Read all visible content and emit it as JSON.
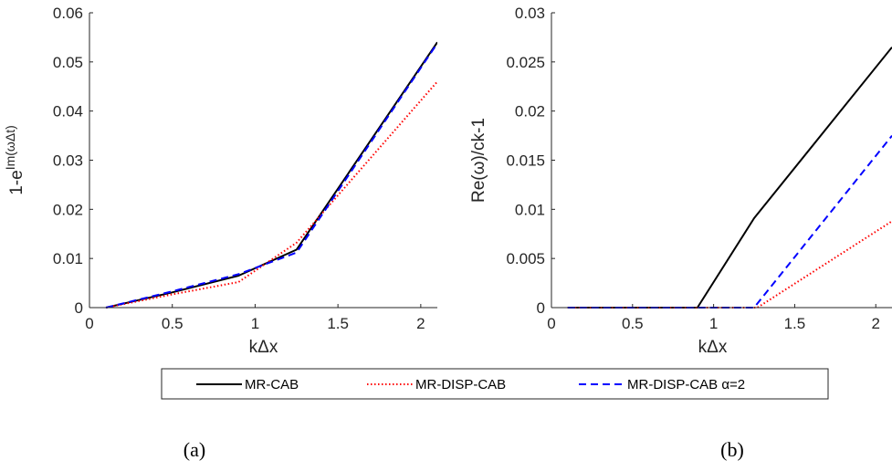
{
  "chart_data": [
    {
      "type": "line",
      "panel_label": "(a)",
      "xlabel": "kΔx",
      "ylabel": "1-e^{Im(ωΔt)}",
      "ylabel_base": "1-e",
      "ylabel_sup": "Im(ωΔt)",
      "xlim": [
        0,
        2.1
      ],
      "ylim": [
        0,
        0.06
      ],
      "xticks": [
        0,
        0.5,
        1,
        1.5,
        2
      ],
      "yticks": [
        0,
        0.01,
        0.02,
        0.03,
        0.04,
        0.05,
        0.06
      ],
      "xtick_labels": [
        "0",
        "0.5",
        "1",
        "1.5",
        "2"
      ],
      "ytick_labels": [
        "0",
        "0.01",
        "0.02",
        "0.03",
        "0.04",
        "0.05",
        "0.06"
      ],
      "series": [
        {
          "name": "MR-CAB",
          "color": "#000000",
          "dash": "solid",
          "x": [
            0.1,
            0.5,
            0.9,
            1.25,
            2.1
          ],
          "y": [
            0,
            0.0031,
            0.0065,
            0.0118,
            0.054
          ]
        },
        {
          "name": "MR-DISP-CAB",
          "color": "#ff0000",
          "dash": "dotted",
          "x": [
            0.1,
            0.5,
            0.9,
            1.25,
            2.1
          ],
          "y": [
            0,
            0.0027,
            0.0052,
            0.0132,
            0.046
          ]
        },
        {
          "name": "MR-DISP-CAB α=2",
          "color": "#0000ff",
          "dash": "dashed",
          "x": [
            0.1,
            0.5,
            0.9,
            1.25,
            2.1
          ],
          "y": [
            0,
            0.0033,
            0.0068,
            0.0112,
            0.0538
          ]
        }
      ]
    },
    {
      "type": "line",
      "panel_label": "(b)",
      "xlabel": "kΔx",
      "ylabel": "Re(ω)/ck-1",
      "xlim": [
        0,
        2.1
      ],
      "ylim": [
        0,
        0.03
      ],
      "xticks": [
        0,
        0.5,
        1,
        1.5,
        2
      ],
      "yticks": [
        0,
        0.005,
        0.01,
        0.015,
        0.02,
        0.025,
        0.03
      ],
      "xtick_labels": [
        "0",
        "0.5",
        "1",
        "1.5",
        "2"
      ],
      "ytick_labels": [
        "0",
        "0.005",
        "0.01",
        "0.015",
        "0.02",
        "0.025",
        "0.03"
      ],
      "series": [
        {
          "name": "MR-CAB",
          "color": "#000000",
          "dash": "solid",
          "x": [
            0.1,
            0.9,
            1.25,
            2.1
          ],
          "y": [
            0,
            0,
            0.0091,
            0.0265
          ]
        },
        {
          "name": "MR-DISP-CAB",
          "color": "#ff0000",
          "dash": "dotted",
          "x": [
            0.1,
            1.27,
            2.1
          ],
          "y": [
            0,
            0,
            0.0088
          ]
        },
        {
          "name": "MR-DISP-CAB α=2",
          "color": "#0000ff",
          "dash": "dashed",
          "x": [
            0.1,
            1.25,
            2.1
          ],
          "y": [
            0,
            0,
            0.0175
          ]
        }
      ]
    }
  ],
  "legend": {
    "placement": "bottom-center",
    "entries": [
      {
        "label": "MR-CAB",
        "color": "#000000",
        "dash": "solid"
      },
      {
        "label": "MR-DISP-CAB",
        "color": "#ff0000",
        "dash": "dotted"
      },
      {
        "label": "MR-DISP-CAB α=2",
        "color": "#0000ff",
        "dash": "dashed"
      }
    ]
  }
}
